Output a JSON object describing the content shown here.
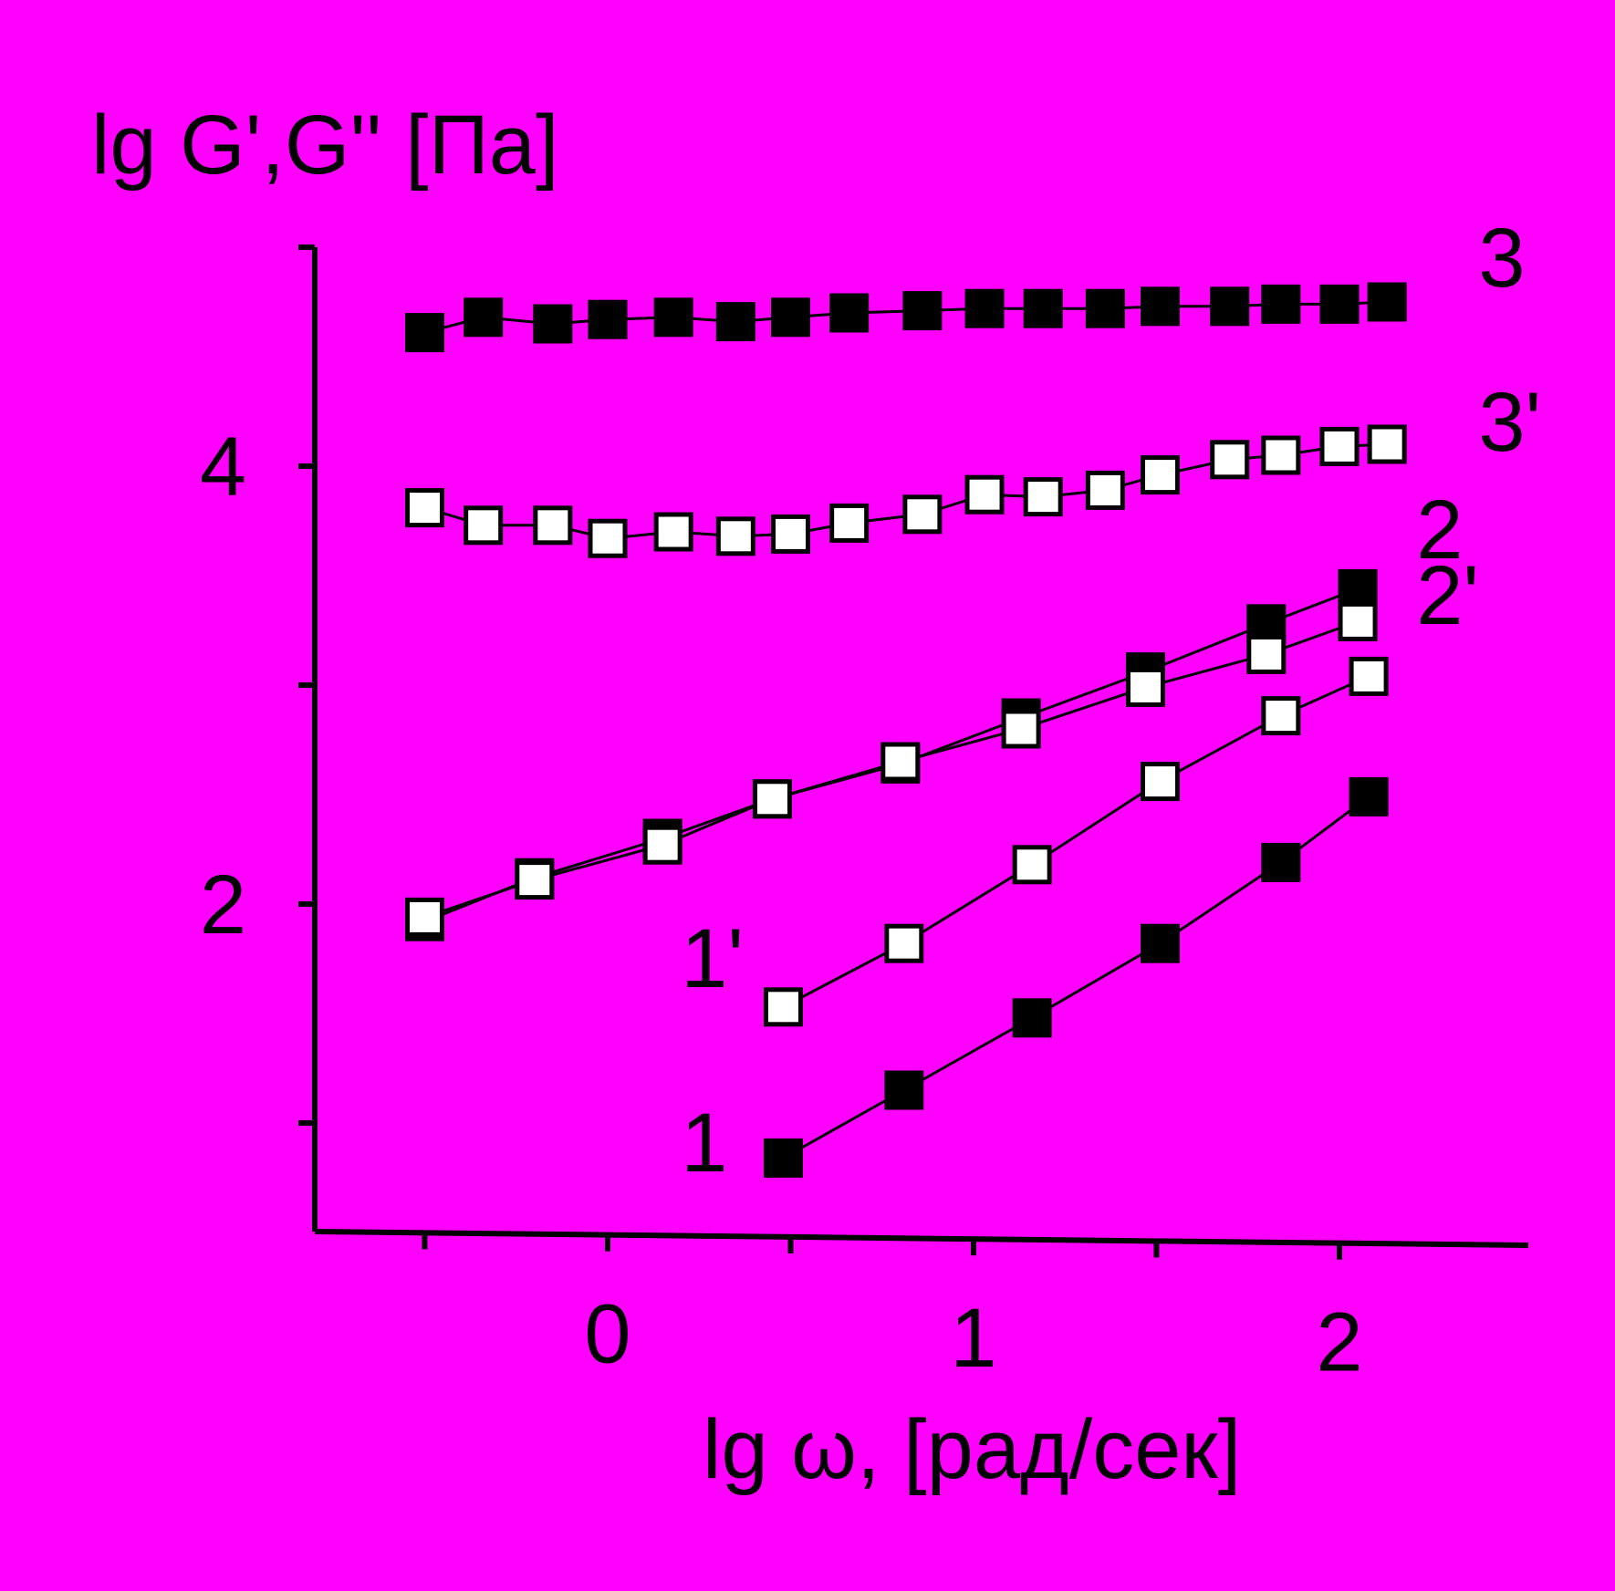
{
  "background": "#FF00FF",
  "chart_data": {
    "type": "line",
    "xlabel": "lg ω, [рад/сек]",
    "ylabel": "lg G',G'' [Па]",
    "xlim": [
      -0.8,
      2.5
    ],
    "ylim": [
      0.5,
      5.0
    ],
    "x_major_ticks": [
      0,
      1,
      2
    ],
    "x_minor_ticks": [
      -0.5,
      0.5,
      1.5
    ],
    "x_tick_labels": [
      "0",
      "1",
      "2"
    ],
    "y_major_ticks": [
      2,
      4
    ],
    "y_minor_ticks": [
      1,
      3,
      5
    ],
    "y_tick_labels": [
      "2",
      "4"
    ],
    "grid": false,
    "legend": "none",
    "series": [
      {
        "name": "3",
        "marker": "filled-square",
        "label_pos": [
          2.38,
          4.82
        ],
        "points": [
          [
            -0.5,
            4.61
          ],
          [
            -0.34,
            4.68
          ],
          [
            -0.15,
            4.65
          ],
          [
            0.0,
            4.67
          ],
          [
            0.18,
            4.68
          ],
          [
            0.35,
            4.66
          ],
          [
            0.5,
            4.68
          ],
          [
            0.66,
            4.7
          ],
          [
            0.86,
            4.71
          ],
          [
            1.03,
            4.72
          ],
          [
            1.19,
            4.72
          ],
          [
            1.36,
            4.72
          ],
          [
            1.51,
            4.73
          ],
          [
            1.7,
            4.73
          ],
          [
            1.84,
            4.74
          ],
          [
            2.0,
            4.74
          ],
          [
            2.13,
            4.75
          ]
        ]
      },
      {
        "name": "3'",
        "marker": "open-square",
        "label_pos": [
          2.38,
          4.07
        ],
        "points": [
          [
            -0.5,
            3.81
          ],
          [
            -0.34,
            3.73
          ],
          [
            -0.15,
            3.73
          ],
          [
            0.0,
            3.67
          ],
          [
            0.18,
            3.7
          ],
          [
            0.35,
            3.68
          ],
          [
            0.5,
            3.69
          ],
          [
            0.66,
            3.74
          ],
          [
            0.86,
            3.78
          ],
          [
            1.03,
            3.87
          ],
          [
            1.19,
            3.86
          ],
          [
            1.36,
            3.89
          ],
          [
            1.51,
            3.96
          ],
          [
            1.7,
            4.03
          ],
          [
            1.84,
            4.05
          ],
          [
            2.0,
            4.09
          ],
          [
            2.13,
            4.1
          ]
        ]
      },
      {
        "name": "2",
        "marker": "filled-square",
        "label_pos": [
          2.21,
          3.58
        ],
        "points": [
          [
            -0.5,
            1.92
          ],
          [
            -0.2,
            2.12
          ],
          [
            0.15,
            2.3
          ],
          [
            0.45,
            2.48
          ],
          [
            0.8,
            2.64
          ],
          [
            1.13,
            2.85
          ],
          [
            1.47,
            3.06
          ],
          [
            1.8,
            3.28
          ],
          [
            2.05,
            3.44
          ]
        ]
      },
      {
        "name": "2'",
        "marker": "open-square",
        "label_pos": [
          2.21,
          3.28
        ],
        "points": [
          [
            -0.5,
            1.94
          ],
          [
            -0.2,
            2.11
          ],
          [
            0.15,
            2.27
          ],
          [
            0.45,
            2.48
          ],
          [
            0.8,
            2.65
          ],
          [
            1.13,
            2.8
          ],
          [
            1.47,
            2.99
          ],
          [
            1.8,
            3.14
          ],
          [
            2.05,
            3.29
          ]
        ]
      },
      {
        "name": "1'",
        "marker": "open-square",
        "label_pos": [
          0.2,
          1.62
        ],
        "points": [
          [
            0.48,
            1.53
          ],
          [
            0.81,
            1.82
          ],
          [
            1.16,
            2.18
          ],
          [
            1.51,
            2.56
          ],
          [
            1.84,
            2.86
          ],
          [
            2.08,
            3.04
          ]
        ]
      },
      {
        "name": "1",
        "marker": "filled-square",
        "label_pos": [
          0.2,
          0.78
        ],
        "points": [
          [
            0.48,
            0.84
          ],
          [
            0.81,
            1.15
          ],
          [
            1.16,
            1.48
          ],
          [
            1.51,
            1.82
          ],
          [
            1.84,
            2.19
          ],
          [
            2.08,
            2.49
          ]
        ]
      }
    ]
  }
}
